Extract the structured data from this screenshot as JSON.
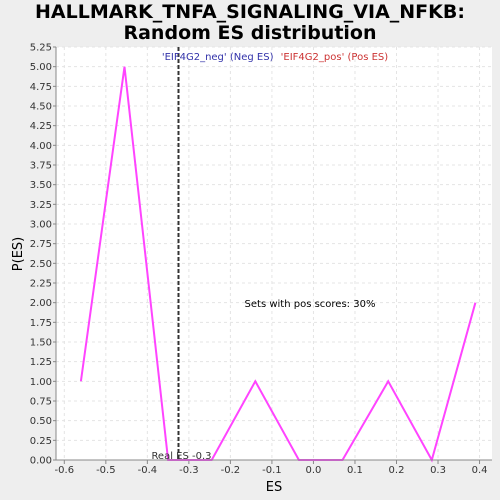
{
  "chart_data": {
    "type": "line",
    "title_lines": [
      "HALLMARK_TNFA_SIGNALING_VIA_NFKB:",
      "Random ES distribution"
    ],
    "xlabel": "ES",
    "ylabel": "P(ES)",
    "xlim": [
      -0.62,
      0.43
    ],
    "ylim": [
      0,
      5.25
    ],
    "x_ticks": [
      -0.6,
      -0.5,
      -0.4,
      -0.3,
      -0.2,
      -0.1,
      0.0,
      0.1,
      0.2,
      0.3,
      0.4
    ],
    "x_tick_labels": [
      "-0.6",
      "-0.5",
      "-0.4",
      "-0.3",
      "-0.2",
      "-0.1",
      "0.0",
      "0.1",
      "0.2",
      "0.3",
      "0.4"
    ],
    "y_ticks": [
      0,
      0.25,
      0.5,
      0.75,
      1.0,
      1.25,
      1.5,
      1.75,
      2.0,
      2.25,
      2.5,
      2.75,
      3.0,
      3.25,
      3.5,
      3.75,
      4.0,
      4.25,
      4.5,
      4.75,
      5.0,
      5.25
    ],
    "y_tick_labels": [
      "0.00",
      "0.25",
      "0.50",
      "0.75",
      "1.00",
      "1.25",
      "1.50",
      "1.75",
      "2.00",
      "2.25",
      "2.50",
      "2.75",
      "3.00",
      "3.25",
      "3.50",
      "3.75",
      "4.00",
      "4.25",
      "4.50",
      "4.75",
      "5.00",
      "5.25"
    ],
    "grid": true,
    "series": [
      {
        "color": "#ff44ff",
        "x": [
          -0.56,
          -0.455,
          -0.35,
          -0.245,
          -0.14,
          -0.035,
          0.07,
          0.18,
          0.285,
          0.39
        ],
        "y": [
          1.0,
          5.0,
          0.0,
          0.0,
          1.0,
          0.0,
          0.0,
          1.0,
          0.0,
          2.0
        ]
      }
    ],
    "real_es": {
      "value": -0.325,
      "label": "Real ES -0.3",
      "color": "#333333"
    },
    "legend": {
      "neg_text": "'EIF4G2_neg' (Neg ES)",
      "neg_color": "#3333aa",
      "pos_text": "'EIF4G2_pos' (Pos ES)",
      "pos_color": "#cc3333"
    },
    "annotation": "Sets with pos scores: 30%"
  }
}
